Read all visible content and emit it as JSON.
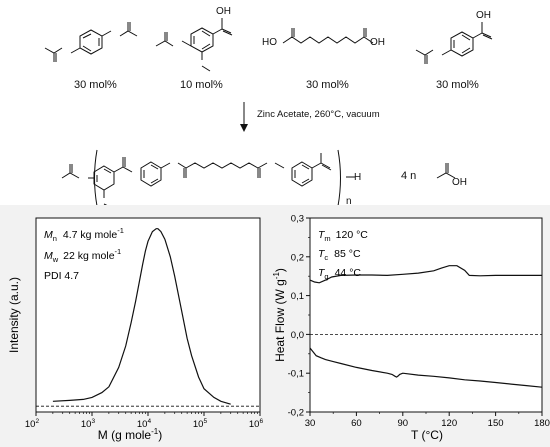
{
  "scheme": {
    "monomers": [
      {
        "name": "hydroquinone diacetate",
        "mol_label": "30 mol%"
      },
      {
        "name": "acetylvanillic acid",
        "mol_label": "10 mol%",
        "oh_label": "OH"
      },
      {
        "name": "suberic acid",
        "mol_label": "30 mol%",
        "ho_label": "HO",
        "oh_label": "OH"
      },
      {
        "name": "4-acetoxybenzoic acid",
        "mol_label": "30 mol%",
        "oh_label": "OH"
      }
    ],
    "conditions": "Zinc Acetate, 260°C, vacuum",
    "polymer": {
      "end_h": "H",
      "repeat_n": "n",
      "o_label": "O"
    },
    "byproduct": {
      "coefficient": "4 n",
      "oh_label": "OH"
    }
  },
  "gpc": {
    "annotations": {
      "mn_symbol": "M",
      "mn_sub": "n",
      "mn_value": "4.7 kg mole",
      "mw_symbol": "M",
      "mw_sub": "w",
      "mw_value": "22 kg mole",
      "exp": "-1",
      "pdi": "PDI  4.7"
    },
    "chart_data": {
      "type": "line",
      "title": "",
      "xlabel": "M (g mole",
      "xlabel_exp": "-1",
      "xlabel_close": ")",
      "ylabel": "Intensity (a.u.)",
      "x_scale": "log",
      "xlim": [
        100,
        1000000
      ],
      "x_ticks": [
        {
          "value": 100,
          "base": "10",
          "exp": "2"
        },
        {
          "value": 1000,
          "base": "10",
          "exp": "3"
        },
        {
          "value": 10000,
          "base": "10",
          "exp": "4"
        },
        {
          "value": 100000,
          "base": "10",
          "exp": "5"
        },
        {
          "value": 1000000,
          "base": "10",
          "exp": "6"
        }
      ],
      "ylim": [
        0,
        1
      ],
      "baseline": 0.03,
      "series": [
        {
          "x": [
            200,
            400,
            700,
            1000,
            1500,
            2000,
            3000,
            4000,
            5000,
            6000,
            7000,
            8000,
            9000,
            10000,
            12000,
            14000,
            15000,
            17000,
            20000,
            25000,
            30000,
            40000,
            50000,
            60000,
            80000,
            100000,
            150000,
            200000,
            300000
          ],
          "y": [
            0.055,
            0.06,
            0.065,
            0.075,
            0.1,
            0.13,
            0.23,
            0.34,
            0.46,
            0.57,
            0.67,
            0.76,
            0.83,
            0.88,
            0.93,
            0.945,
            0.945,
            0.93,
            0.89,
            0.8,
            0.7,
            0.52,
            0.38,
            0.29,
            0.18,
            0.12,
            0.075,
            0.055,
            0.04
          ]
        }
      ]
    }
  },
  "dsc": {
    "annotations": {
      "tm_symbol": "T",
      "tm_sub": "m",
      "tm_value": "120 °C",
      "tc_symbol": "T",
      "tc_sub": "c",
      "tc_value": "85 °C",
      "tg_symbol": "T",
      "tg_sub": "g",
      "tg_value": "44 °C"
    },
    "chart_data": {
      "type": "line",
      "title": "",
      "xlabel": "T (°C)",
      "ylabel": "Heat Flow (W g",
      "ylabel_exp": "-1",
      "ylabel_close": ")",
      "xlim": [
        30,
        180
      ],
      "ylim": [
        -0.2,
        0.3
      ],
      "x_ticks": [
        "30",
        "60",
        "90",
        "120",
        "150",
        "180"
      ],
      "y_ticks": [
        "-0,2",
        "-0,1",
        "0,0",
        "0,1",
        "0,2",
        "0,3"
      ],
      "zero_line": 0,
      "series": [
        {
          "name": "heating",
          "x": [
            30,
            33,
            36,
            40,
            44,
            50,
            60,
            70,
            80,
            90,
            100,
            110,
            115,
            120,
            125,
            130,
            133,
            140,
            150,
            160,
            170,
            180
          ],
          "y": [
            0.14,
            0.135,
            0.133,
            0.14,
            0.148,
            0.152,
            0.153,
            0.153,
            0.152,
            0.155,
            0.158,
            0.164,
            0.171,
            0.177,
            0.177,
            0.165,
            0.152,
            0.151,
            0.152,
            0.152,
            0.152,
            0.152
          ]
        },
        {
          "name": "cooling",
          "x": [
            30,
            32,
            34,
            37,
            40,
            45,
            50,
            60,
            70,
            80,
            83,
            85,
            86,
            87,
            88,
            90,
            100,
            110,
            120,
            130,
            140,
            150,
            160,
            170,
            180
          ],
          "y": [
            -0.035,
            -0.045,
            -0.055,
            -0.06,
            -0.065,
            -0.07,
            -0.075,
            -0.085,
            -0.093,
            -0.1,
            -0.103,
            -0.108,
            -0.11,
            -0.107,
            -0.103,
            -0.1,
            -0.105,
            -0.108,
            -0.112,
            -0.117,
            -0.12,
            -0.124,
            -0.128,
            -0.132,
            -0.136
          ]
        }
      ]
    }
  }
}
